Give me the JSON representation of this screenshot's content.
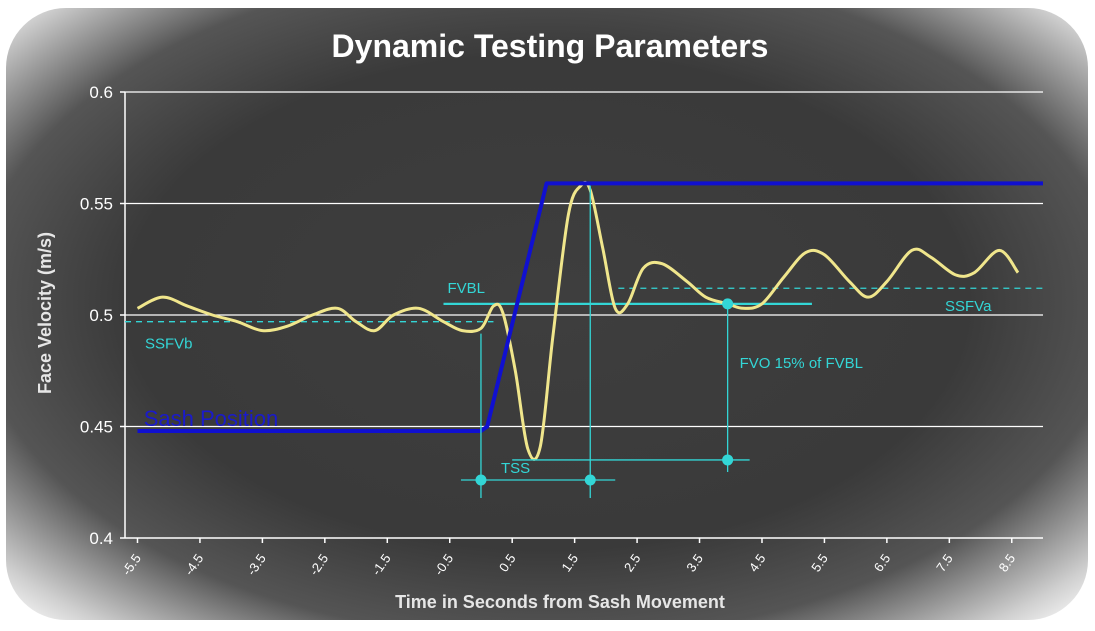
{
  "chart_data": {
    "type": "line",
    "title": "Dynamic Testing Parameters",
    "xlabel": "Time in Seconds from Sash Movement",
    "ylabel": "Face Velocity (m/s)",
    "xlim": [
      -5.7,
      9.0
    ],
    "ylim": [
      0.4,
      0.6
    ],
    "y_ticks": [
      "0.4",
      "0.45",
      "0.5",
      "0.55",
      "0.6"
    ],
    "y_tick_values": [
      0.4,
      0.45,
      0.5,
      0.55,
      0.6
    ],
    "x_ticks": [
      "-5.5",
      "-4.5",
      "-3.5",
      "-2.5",
      "-1.5",
      "-0.5",
      "0.5",
      "1.5",
      "2.5",
      "3.5",
      "4.5",
      "5.5",
      "6.5",
      "7.5",
      "8.5"
    ],
    "x_tick_values": [
      -5.5,
      -4.5,
      -3.5,
      -2.5,
      -1.5,
      -0.5,
      0.5,
      1.5,
      2.5,
      3.5,
      4.5,
      5.5,
      6.5,
      7.5,
      8.5
    ],
    "grid": "horizontal",
    "series": [
      {
        "name": "Face Velocity",
        "color": "#f0e68c",
        "x": [
          -5.5,
          -5.1,
          -4.7,
          -4.3,
          -3.9,
          -3.5,
          -3.1,
          -2.7,
          -2.3,
          -2.0,
          -1.7,
          -1.4,
          -1.0,
          -0.6,
          -0.3,
          0.0,
          0.2,
          0.35,
          0.55,
          0.75,
          0.95,
          1.15,
          1.4,
          1.6,
          1.75,
          1.95,
          2.15,
          2.35,
          2.6,
          2.9,
          3.3,
          3.6,
          3.95,
          4.2,
          4.5,
          4.85,
          5.2,
          5.5,
          5.9,
          6.2,
          6.5,
          6.9,
          7.2,
          7.6,
          7.9,
          8.3,
          8.6
        ],
        "values": [
          0.503,
          0.508,
          0.504,
          0.5,
          0.497,
          0.493,
          0.495,
          0.5,
          0.503,
          0.497,
          0.493,
          0.5,
          0.503,
          0.497,
          0.493,
          0.494,
          0.504,
          0.501,
          0.475,
          0.44,
          0.441,
          0.49,
          0.545,
          0.558,
          0.556,
          0.53,
          0.503,
          0.505,
          0.521,
          0.523,
          0.515,
          0.508,
          0.505,
          0.503,
          0.505,
          0.517,
          0.528,
          0.527,
          0.515,
          0.508,
          0.515,
          0.529,
          0.526,
          0.518,
          0.519,
          0.529,
          0.519
        ]
      },
      {
        "name": "Sash Position",
        "color": "#1010d0",
        "x": [
          -5.5,
          0.0,
          0.1,
          1.05,
          9.0
        ],
        "values": [
          0.448,
          0.448,
          0.45,
          0.559,
          0.559
        ]
      }
    ],
    "reference_lines": [
      {
        "label": "SSFVb",
        "y": 0.497,
        "x_range": [
          -5.7,
          0.2
        ],
        "style": "dashed",
        "color": "#33d6d6"
      },
      {
        "label": "SSFVa",
        "y": 0.512,
        "x_range": [
          2.2,
          9.0
        ],
        "style": "dashed",
        "color": "#33d6d6"
      },
      {
        "label": "FVBL",
        "y": 0.505,
        "x_range": [
          -0.6,
          5.3
        ],
        "style": "solid",
        "color": "#33d6d6"
      }
    ],
    "annotations": {
      "sash_label": "Sash Position",
      "fvbl_label": "FVBL",
      "ssfvb_label": "SSFVb",
      "ssfva_label": "SSFVa",
      "tss_label": "TSS",
      "fvo_label": "FVO 15% of FVBL"
    },
    "markers": {
      "tss_start_x": 0.0,
      "tss_end_x": 1.75,
      "fvo_x": 3.95,
      "tss_y": 0.426,
      "fvo_bracket_y": 0.435
    }
  }
}
